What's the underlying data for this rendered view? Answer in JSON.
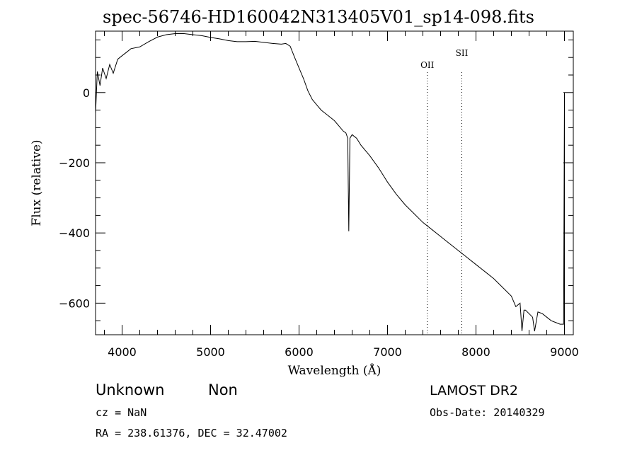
{
  "chart_data": {
    "type": "line",
    "title": "spec-56746-HD160042N313405V01_sp14-098.fits",
    "xlabel": "Wavelength (Å)",
    "ylabel": "Flux (relative)",
    "xlim": [
      3700,
      9100
    ],
    "ylim": [
      -690,
      175
    ],
    "x_ticks": [
      4000,
      5000,
      6000,
      7000,
      8000,
      9000
    ],
    "y_ticks": [
      0,
      -200,
      -400,
      -600
    ],
    "grid": false,
    "series": [
      {
        "x": [
          3700,
          3720,
          3750,
          3780,
          3820,
          3860,
          3900,
          3950,
          4000,
          4050,
          4100,
          4200,
          4300,
          4400,
          4500,
          4600,
          4700,
          4800,
          4900,
          5000,
          5100,
          5200,
          5300,
          5400,
          5500,
          5600,
          5700,
          5800,
          5850,
          5900,
          5950,
          6000,
          6050,
          6100,
          6150,
          6200,
          6250,
          6300,
          6350,
          6400,
          6450,
          6500,
          6530,
          6550,
          6562,
          6575,
          6600,
          6650,
          6700,
          6800,
          6900,
          7000,
          7100,
          7200,
          7300,
          7400,
          7500,
          7600,
          7700,
          7800,
          7900,
          8000,
          8100,
          8200,
          8300,
          8400,
          8450,
          8498,
          8520,
          8542,
          8560,
          8600,
          8640,
          8662,
          8700,
          8750,
          8800,
          8850,
          8900,
          8950,
          8990,
          9000,
          9000
        ],
        "y": [
          -60,
          60,
          20,
          70,
          40,
          80,
          55,
          95,
          105,
          115,
          125,
          130,
          145,
          158,
          165,
          168,
          168,
          165,
          162,
          157,
          153,
          148,
          145,
          145,
          146,
          143,
          140,
          138,
          140,
          132,
          100,
          70,
          40,
          5,
          -20,
          -35,
          -50,
          -60,
          -70,
          -80,
          -95,
          -110,
          -115,
          -130,
          -395,
          -130,
          -120,
          -130,
          -150,
          -180,
          -215,
          -255,
          -290,
          -320,
          -345,
          -370,
          -390,
          -410,
          -430,
          -450,
          -470,
          -490,
          -510,
          -530,
          -555,
          -580,
          -610,
          -600,
          -680,
          -620,
          -620,
          -630,
          -640,
          -680,
          -625,
          -630,
          -640,
          -650,
          -655,
          -660,
          -660,
          0,
          -690
        ]
      }
    ],
    "annotations": [
      {
        "label": "OII",
        "x": 7450
      },
      {
        "label": "SII",
        "x": 7840
      }
    ]
  },
  "info": {
    "class_label": "Unknown",
    "subclass_label": "Non",
    "cz_text": "cz = NaN",
    "radec_text": "RA = 238.61376, DEC =  32.47002",
    "survey_label": "LAMOST DR2",
    "obs_date_text": "Obs-Date: 20140329"
  }
}
